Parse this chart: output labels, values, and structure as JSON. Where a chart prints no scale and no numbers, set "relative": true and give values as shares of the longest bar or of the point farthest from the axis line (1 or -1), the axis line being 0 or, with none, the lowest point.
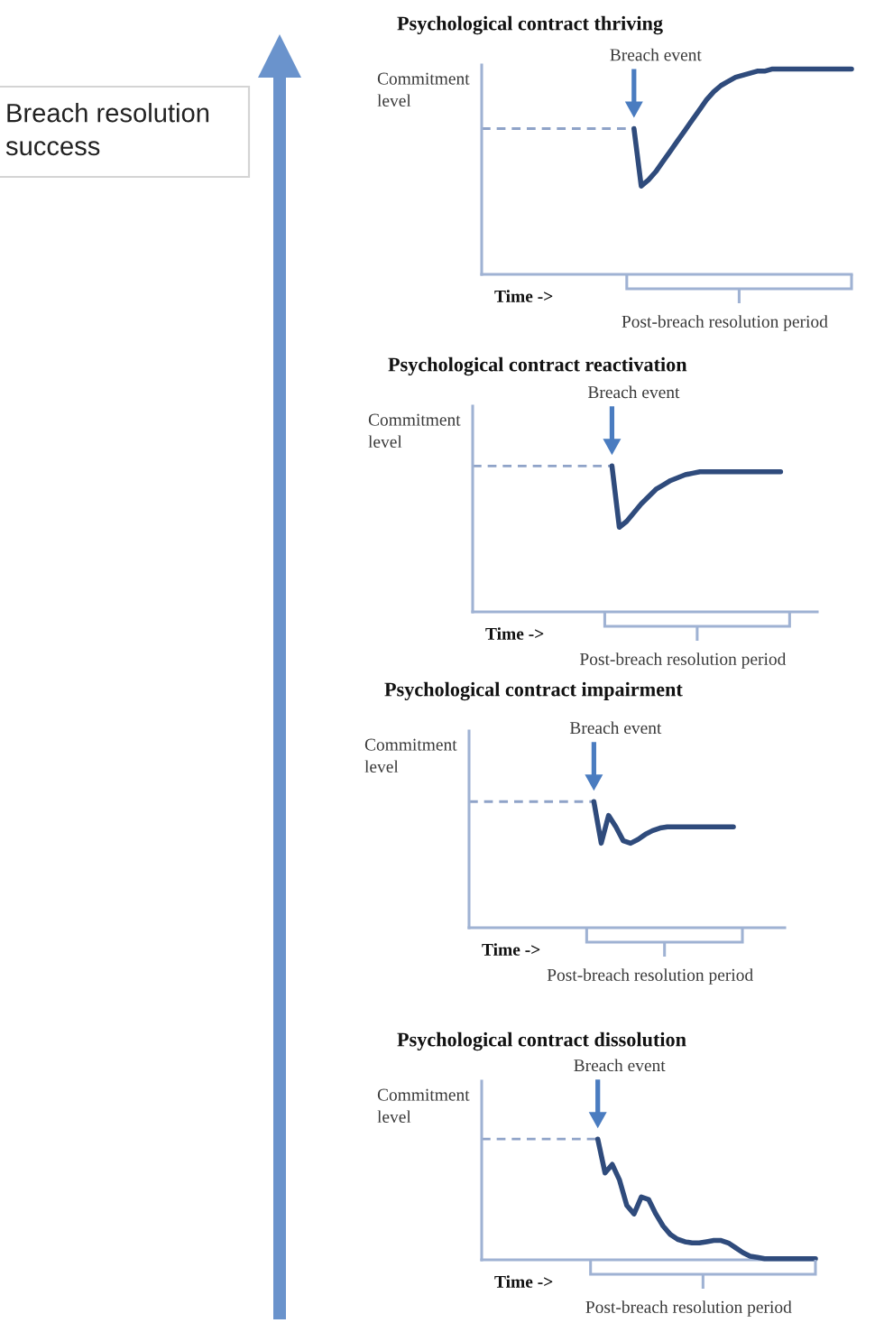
{
  "chart_data": [
    {
      "type": "other",
      "annotations": [
        "Breach resolution success"
      ]
    },
    {
      "type": "line",
      "title": "Psychological contract thriving",
      "xlabel": "Time ->",
      "ylabel": "Commitment level",
      "relative": true,
      "categories": [
        null,
        null,
        null,
        null,
        null,
        null,
        null,
        null,
        null,
        null,
        null,
        null,
        null,
        null,
        null,
        null,
        null,
        null,
        null,
        null,
        null,
        null,
        null,
        null,
        null,
        null,
        null,
        null,
        null,
        null,
        null,
        null,
        null,
        null,
        null,
        null,
        null,
        null,
        null,
        null,
        null,
        null,
        null,
        null,
        null,
        null,
        null,
        null,
        null,
        null,
        null,
        null
      ],
      "series": [
        {
          "color": "#2f4b7c",
          "values": [
            null,
            null,
            null,
            null,
            null,
            null,
            null,
            null,
            null,
            null,
            null,
            null,
            null,
            null,
            null,
            null,
            null,
            null,
            null,
            null,
            null,
            0.71,
            0.43,
            0.46,
            0.5,
            0.55,
            0.6,
            0.65,
            0.7,
            0.75,
            0.8,
            0.85,
            0.89,
            0.92,
            0.94,
            0.96,
            0.97,
            0.98,
            0.99,
            0.99,
            1,
            1,
            1,
            1,
            1,
            1,
            1,
            1,
            1,
            1,
            1,
            1
          ]
        },
        {
          "color": "#8fa3c8",
          "line_style": "dashed",
          "values": [
            0.71,
            0.71,
            0.71,
            0.71,
            0.71,
            0.71,
            0.71,
            0.71,
            0.71,
            0.71,
            0.71,
            0.71,
            0.71,
            0.71,
            0.71,
            0.71,
            0.71,
            0.71,
            0.71,
            0.71,
            0.71,
            0.71,
            null,
            null,
            null,
            null,
            null,
            null,
            null,
            null,
            null,
            null,
            null,
            null,
            null,
            null,
            null,
            null,
            null,
            null,
            null,
            null,
            null,
            null,
            null,
            null,
            null,
            null,
            null,
            null,
            null,
            null
          ]
        }
      ],
      "annotations": [
        "Breach event",
        "Post-breach resolution period"
      ]
    },
    {
      "type": "line",
      "title": "Psychological contract reactivation",
      "xlabel": "Time ->",
      "ylabel": "Commitment level",
      "relative": true,
      "categories": [
        null,
        null,
        null,
        null,
        null,
        null,
        null,
        null,
        null,
        null,
        null,
        null,
        null,
        null,
        null,
        null,
        null,
        null,
        null,
        null,
        null,
        null,
        null,
        null,
        null,
        null,
        null,
        null,
        null,
        null,
        null,
        null,
        null,
        null,
        null,
        null,
        null,
        null,
        null,
        null,
        null,
        null,
        null,
        null,
        null,
        null,
        null,
        null
      ],
      "series": [
        {
          "color": "#2f4b7c",
          "values": [
            null,
            null,
            null,
            null,
            null,
            null,
            null,
            null,
            null,
            null,
            null,
            null,
            null,
            null,
            null,
            null,
            null,
            null,
            null,
            1,
            0.58,
            0.62,
            0.68,
            0.74,
            0.79,
            0.84,
            0.87,
            0.9,
            0.92,
            0.94,
            0.95,
            0.96,
            0.96,
            0.96,
            0.96,
            0.96,
            0.96,
            0.96,
            0.96,
            0.96,
            0.96,
            0.96,
            0.96,
            null,
            null,
            null,
            null,
            null
          ]
        },
        {
          "color": "#8fa3c8",
          "line_style": "dashed",
          "values": [
            1,
            1,
            1,
            1,
            1,
            1,
            1,
            1,
            1,
            1,
            1,
            1,
            1,
            1,
            1,
            1,
            1,
            1,
            1,
            1,
            null,
            null,
            null,
            null,
            null,
            null,
            null,
            null,
            null,
            null,
            null,
            null,
            null,
            null,
            null,
            null,
            null,
            null,
            null,
            null,
            null,
            null,
            null,
            null,
            null,
            null,
            null,
            null
          ]
        }
      ],
      "annotations": [
        "Breach event",
        "Post-breach resolution period"
      ]
    },
    {
      "type": "line",
      "title": "Psychological contract impairment",
      "xlabel": "Time ->",
      "ylabel": "Commitment level",
      "relative": true,
      "categories": [
        null,
        null,
        null,
        null,
        null,
        null,
        null,
        null,
        null,
        null,
        null,
        null,
        null,
        null,
        null,
        null,
        null,
        null,
        null,
        null,
        null,
        null,
        null,
        null,
        null,
        null,
        null,
        null,
        null,
        null,
        null,
        null,
        null,
        null,
        null,
        null,
        null,
        null,
        null,
        null,
        null,
        null,
        null,
        null
      ],
      "series": [
        {
          "color": "#2f4b7c",
          "values": [
            null,
            null,
            null,
            null,
            null,
            null,
            null,
            null,
            null,
            null,
            null,
            null,
            null,
            null,
            null,
            null,
            null,
            1,
            0.67,
            0.89,
            0.8,
            0.69,
            0.67,
            0.7,
            0.74,
            0.77,
            0.79,
            0.8,
            0.8,
            0.8,
            0.8,
            0.8,
            0.8,
            0.8,
            0.8,
            0.8,
            0.8,
            null,
            null,
            null,
            null,
            null,
            null,
            null
          ]
        },
        {
          "color": "#8fa3c8",
          "line_style": "dashed",
          "values": [
            1,
            1,
            1,
            1,
            1,
            1,
            1,
            1,
            1,
            1,
            1,
            1,
            1,
            1,
            1,
            1,
            1,
            1,
            null,
            null,
            null,
            null,
            null,
            null,
            null,
            null,
            null,
            null,
            null,
            null,
            null,
            null,
            null,
            null,
            null,
            null,
            null,
            null,
            null,
            null,
            null,
            null,
            null,
            null
          ]
        }
      ],
      "annotations": [
        "Breach event",
        "Post-breach resolution period"
      ]
    },
    {
      "type": "line",
      "title": "Psychological contract dissolution",
      "xlabel": "Time ->",
      "ylabel": "Commitment level",
      "relative": true,
      "categories": [
        null,
        null,
        null,
        null,
        null,
        null,
        null,
        null,
        null,
        null,
        null,
        null,
        null,
        null,
        null,
        null,
        null,
        null,
        null,
        null,
        null,
        null,
        null,
        null,
        null,
        null,
        null,
        null,
        null,
        null,
        null,
        null,
        null,
        null,
        null,
        null,
        null,
        null,
        null,
        null,
        null,
        null,
        null,
        null,
        null,
        null,
        null
      ],
      "series": [
        {
          "color": "#2f4b7c",
          "values": [
            null,
            null,
            null,
            null,
            null,
            null,
            null,
            null,
            null,
            null,
            null,
            null,
            null,
            null,
            null,
            null,
            1,
            0.72,
            0.79,
            0.66,
            0.45,
            0.38,
            0.52,
            0.5,
            0.38,
            0.28,
            0.21,
            0.17,
            0.15,
            0.14,
            0.14,
            0.15,
            0.16,
            0.16,
            0.14,
            0.1,
            0.06,
            0.03,
            0.02,
            0.01,
            0.01,
            0.01,
            0.01,
            0.01,
            0.01,
            0.01,
            0.01
          ]
        },
        {
          "color": "#8fa3c8",
          "line_style": "dashed",
          "values": [
            1,
            1,
            1,
            1,
            1,
            1,
            1,
            1,
            1,
            1,
            1,
            1,
            1,
            1,
            1,
            1,
            1,
            null,
            null,
            null,
            null,
            null,
            null,
            null,
            null,
            null,
            null,
            null,
            null,
            null,
            null,
            null,
            null,
            null,
            null,
            null,
            null,
            null,
            null,
            null,
            null,
            null,
            null,
            null,
            null,
            null,
            null
          ]
        }
      ],
      "annotations": [
        "Breach event",
        "Post-breach resolution period"
      ]
    }
  ]
}
